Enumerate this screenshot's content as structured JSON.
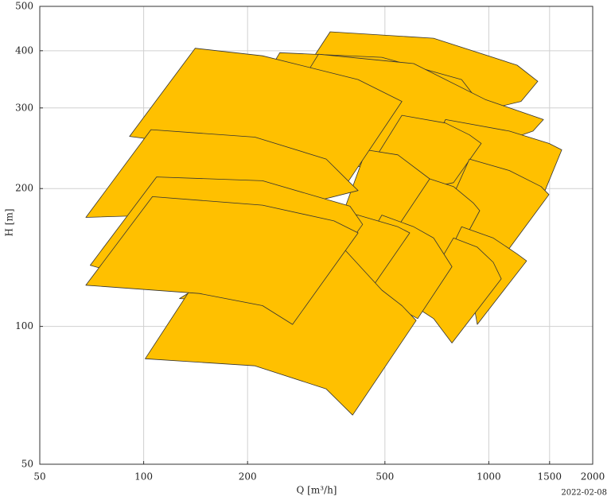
{
  "chart_data": {
    "type": "polygon",
    "xlabel": "Q [m³/h]",
    "ylabel": "H [m]",
    "footnote": "2022-02-08",
    "xscale": "log",
    "yscale": "log",
    "xlim": [
      50,
      2000
    ],
    "ylim": [
      50,
      500
    ],
    "xticks": [
      50,
      100,
      200,
      500,
      1000,
      1500,
      2000
    ],
    "yticks": [
      50,
      100,
      200,
      300,
      400,
      500
    ],
    "grid": true,
    "color": "#ffc000",
    "edgecolor": "#333333",
    "series": [
      {
        "x": [
          347,
          692,
          1208,
          1387,
          1240,
          749,
          221
        ],
        "values": [
          440,
          426,
          372,
          343,
          310,
          283,
          262
        ]
      },
      {
        "x": [
          248,
          490,
          834,
          1003,
          879,
          545,
          152
        ],
        "values": [
          396,
          387,
          346,
          289,
          251,
          237,
          214
        ]
      },
      {
        "x": [
          321,
          606,
          977,
          1440,
          1343,
          926,
          189
        ],
        "values": [
          393,
          375,
          313,
          283,
          267,
          242,
          206
        ]
      },
      {
        "x": [
          749,
          1146,
          1494,
          1627,
          1455,
          1087,
          606
        ],
        "values": [
          283,
          267,
          251,
          243,
          198,
          194,
          206
        ]
      },
      {
        "x": [
          560,
          749,
          879,
          951,
          790,
          606,
          396
        ],
        "values": [
          289,
          278,
          262,
          251,
          206,
          198,
          190
        ]
      },
      {
        "x": [
          879,
          1146,
          1417,
          1494,
          1146,
          926,
          710
        ],
        "values": [
          232,
          219,
          202,
          194,
          148,
          156,
          162
        ]
      },
      {
        "x": [
          441,
          545,
          674,
          692,
          574,
          490,
          356
        ],
        "values": [
          243,
          237,
          210,
          206,
          162,
          156,
          156
        ]
      },
      {
        "x": [
          674,
          790,
          902,
          941,
          770,
          639,
          465
        ],
        "values": [
          210,
          202,
          186,
          179,
          135,
          138,
          138
        ]
      },
      {
        "x": [
          834,
          1030,
          1208,
          1287,
          926,
          902,
          674
        ],
        "values": [
          165,
          156,
          144,
          139,
          101,
          113,
          118
        ]
      },
      {
        "x": [
          790,
          926,
          1030,
          1087,
          782,
          692,
          606
        ],
        "values": [
          156,
          149,
          138,
          127,
          92,
          104,
          111
        ]
      },
      {
        "x": [
          490,
          606,
          692,
          782,
          622,
          490,
          356
        ],
        "values": [
          175,
          165,
          156,
          135,
          104,
          115,
          115
        ]
      },
      {
        "x": [
          338,
          418,
          545,
          590,
          380,
          321,
          127
        ],
        "values": [
          181,
          175,
          165,
          160,
          99,
          111,
          115
        ]
      },
      {
        "x": [
          189,
          356,
          490,
          560,
          616,
          403,
          338,
          210,
          101
        ],
        "values": [
          175,
          156,
          120,
          111,
          103,
          64,
          73,
          82,
          85
        ]
      },
      {
        "x": [
          91,
          141,
          221,
          418,
          560,
          376,
          189
        ],
        "values": [
          260,
          405,
          390,
          346,
          310,
          198,
          242
        ]
      },
      {
        "x": [
          68,
          105,
          210,
          338,
          396,
          418,
          246,
          111
        ],
        "values": [
          173,
          269,
          259,
          232,
          206,
          198,
          179,
          175
        ]
      },
      {
        "x": [
          70,
          109,
          221,
          396,
          431,
          288,
          189,
          130
        ],
        "values": [
          136,
          212,
          208,
          183,
          167,
          109,
          118,
          119
        ]
      },
      {
        "x": [
          68,
          106,
          221,
          356,
          418,
          270,
          221,
          145
        ],
        "values": [
          123,
          192,
          184,
          170,
          160,
          101,
          111,
          118
        ]
      }
    ]
  }
}
